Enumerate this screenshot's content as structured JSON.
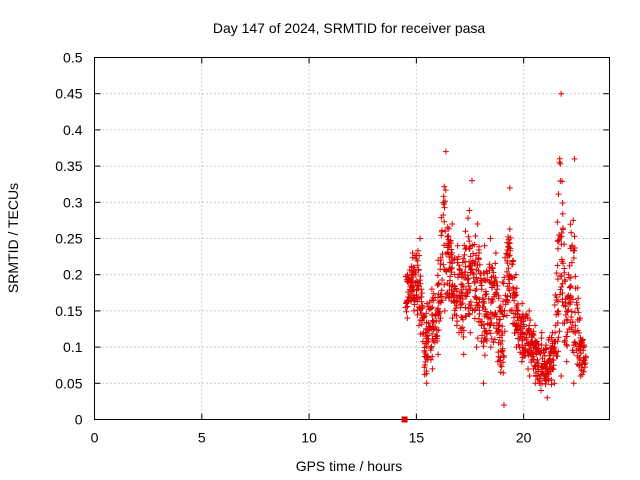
{
  "chart_data": {
    "type": "scatter",
    "title": "Day 147 of 2024, SRMTID for receiver pasa",
    "xlabel": "GPS time / hours",
    "ylabel": "SRMTID / TECUs",
    "xlim": [
      0,
      24
    ],
    "ylim": [
      0,
      0.5
    ],
    "xticks": [
      "0",
      "5",
      "10",
      "15",
      "20"
    ],
    "xtick_values": [
      0,
      5,
      10,
      15,
      20
    ],
    "yticks": [
      "0",
      "0.05",
      "0.1",
      "0.15",
      "0.2",
      "0.25",
      "0.3",
      "0.35",
      "0.4",
      "0.45",
      "0.5"
    ],
    "ytick_values": [
      0,
      0.05,
      0.1,
      0.15,
      0.2,
      0.25,
      0.3,
      0.35,
      0.4,
      0.45,
      0.5
    ],
    "grid": true,
    "marker": "+",
    "marker_color": "#e00000",
    "square_markers": [
      {
        "x": 14.45,
        "y": 0.0
      }
    ],
    "envelope": [
      {
        "x": 14.5,
        "lo": 0.14,
        "hi": 0.2
      },
      {
        "x": 14.8,
        "lo": 0.15,
        "hi": 0.23
      },
      {
        "x": 15.1,
        "lo": 0.13,
        "hi": 0.25
      },
      {
        "x": 15.4,
        "lo": 0.05,
        "hi": 0.16
      },
      {
        "x": 15.7,
        "lo": 0.07,
        "hi": 0.18
      },
      {
        "x": 16.0,
        "lo": 0.09,
        "hi": 0.22
      },
      {
        "x": 16.3,
        "lo": 0.15,
        "hi": 0.37
      },
      {
        "x": 16.6,
        "lo": 0.14,
        "hi": 0.27
      },
      {
        "x": 16.9,
        "lo": 0.12,
        "hi": 0.24
      },
      {
        "x": 17.2,
        "lo": 0.09,
        "hi": 0.26
      },
      {
        "x": 17.5,
        "lo": 0.12,
        "hi": 0.33
      },
      {
        "x": 17.8,
        "lo": 0.1,
        "hi": 0.27
      },
      {
        "x": 18.1,
        "lo": 0.05,
        "hi": 0.24
      },
      {
        "x": 18.4,
        "lo": 0.1,
        "hi": 0.25
      },
      {
        "x": 18.7,
        "lo": 0.08,
        "hi": 0.23
      },
      {
        "x": 19.0,
        "lo": 0.02,
        "hi": 0.19
      },
      {
        "x": 19.3,
        "lo": 0.15,
        "hi": 0.32
      },
      {
        "x": 19.6,
        "lo": 0.1,
        "hi": 0.2
      },
      {
        "x": 19.9,
        "lo": 0.08,
        "hi": 0.16
      },
      {
        "x": 20.2,
        "lo": 0.06,
        "hi": 0.15
      },
      {
        "x": 20.5,
        "lo": 0.05,
        "hi": 0.13
      },
      {
        "x": 20.8,
        "lo": 0.04,
        "hi": 0.12
      },
      {
        "x": 21.1,
        "lo": 0.03,
        "hi": 0.11
      },
      {
        "x": 21.4,
        "lo": 0.05,
        "hi": 0.13
      },
      {
        "x": 21.7,
        "lo": 0.06,
        "hi": 0.45
      },
      {
        "x": 22.0,
        "lo": 0.08,
        "hi": 0.2
      },
      {
        "x": 22.3,
        "lo": 0.05,
        "hi": 0.36
      },
      {
        "x": 22.6,
        "lo": 0.06,
        "hi": 0.14
      },
      {
        "x": 22.9,
        "lo": 0.06,
        "hi": 0.1
      }
    ],
    "points_per_segment": 38
  }
}
